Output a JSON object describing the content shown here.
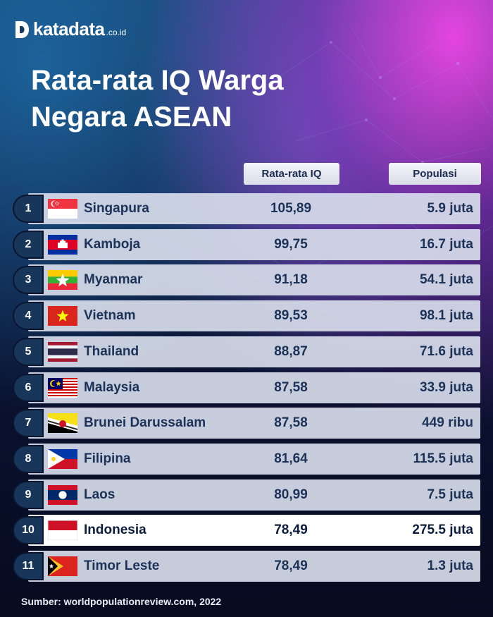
{
  "brand": {
    "name": "katadata",
    "suffix": ".co.id"
  },
  "title_line1": "Rata-rata IQ Warga",
  "title_line2": "Negara ASEAN",
  "columns": {
    "iq": "Rata-rata IQ",
    "population": "Populasi"
  },
  "colors": {
    "row_bg": "#d6dcea",
    "highlight_bg": "#ffffff",
    "rank_bg": "#18365a",
    "text": "#1c3257"
  },
  "chart_data": {
    "type": "table",
    "columns": [
      "Rata-rata IQ",
      "Populasi"
    ],
    "rows": [
      {
        "rank": "1",
        "country": "Singapura",
        "iq": "105,89",
        "population": "5.9 juta",
        "flag": "singapore-flag"
      },
      {
        "rank": "2",
        "country": "Kamboja",
        "iq": "99,75",
        "population": "16.7 juta",
        "flag": "cambodia-flag"
      },
      {
        "rank": "3",
        "country": "Myanmar",
        "iq": "91,18",
        "population": "54.1 juta",
        "flag": "myanmar-flag"
      },
      {
        "rank": "4",
        "country": "Vietnam",
        "iq": "89,53",
        "population": "98.1 juta",
        "flag": "vietnam-flag"
      },
      {
        "rank": "5",
        "country": "Thailand",
        "iq": "88,87",
        "population": "71.6 juta",
        "flag": "thailand-flag"
      },
      {
        "rank": "6",
        "country": "Malaysia",
        "iq": "87,58",
        "population": "33.9 juta",
        "flag": "malaysia-flag"
      },
      {
        "rank": "7",
        "country": "Brunei Darussalam",
        "iq": "87,58",
        "population": "449 ribu",
        "flag": "brunei-flag"
      },
      {
        "rank": "8",
        "country": "Filipina",
        "iq": "81,64",
        "population": "115.5 juta",
        "flag": "philippines-flag"
      },
      {
        "rank": "9",
        "country": "Laos",
        "iq": "80,99",
        "population": "7.5 juta",
        "flag": "laos-flag"
      },
      {
        "rank": "10",
        "country": "Indonesia",
        "iq": "78,49",
        "population": "275.5 juta",
        "flag": "indonesia-flag",
        "highlight": true
      },
      {
        "rank": "11",
        "country": "Timor Leste",
        "iq": "78,49",
        "population": "1.3 juta",
        "flag": "timor-leste-flag"
      }
    ]
  },
  "source": "Sumber: worldpopulationreview.com, 2022"
}
